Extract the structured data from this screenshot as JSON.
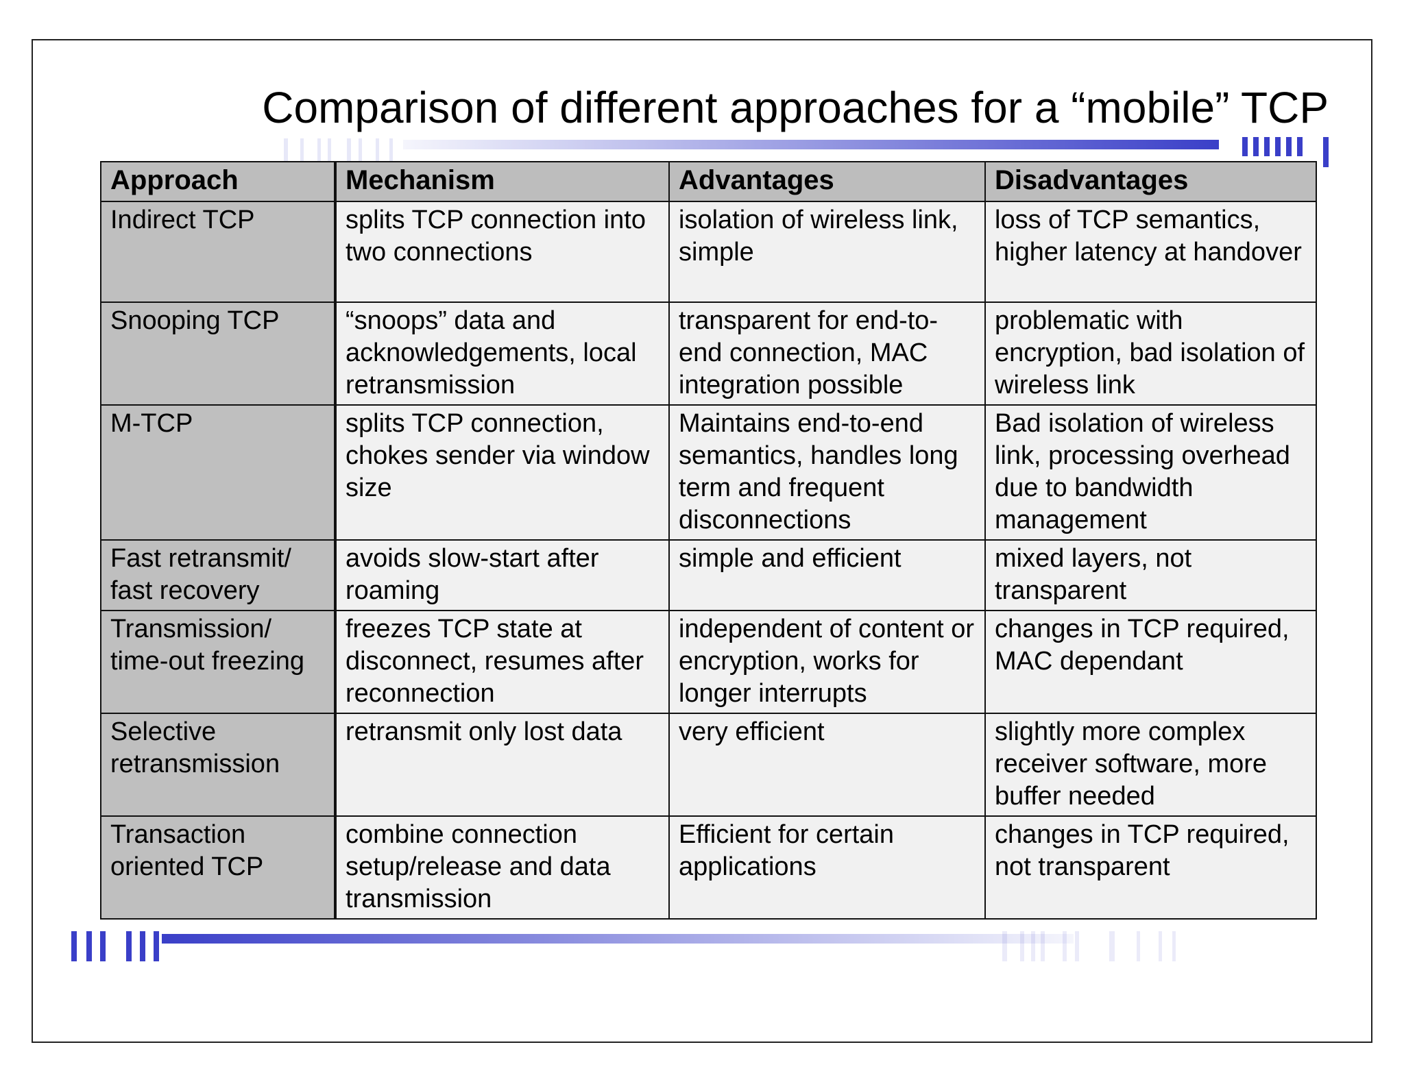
{
  "slide": {
    "title": "Comparison of different approaches for a “mobile” TCP"
  },
  "table": {
    "headers": [
      "Approach",
      "Mechanism",
      "Advantages",
      "Disadvantages"
    ],
    "rows": [
      {
        "approach": "Indirect TCP",
        "mechanism": "splits TCP connection into two connections",
        "advantages": "isolation of wireless link, simple",
        "disadvantages": "loss of TCP semantics, higher latency at handover"
      },
      {
        "approach": "Snooping TCP",
        "mechanism": "“snoops” data and acknowledgements, local retransmission",
        "advantages": "transparent for end-to-end connection, MAC integration possible",
        "disadvantages": "problematic with encryption, bad isolation of wireless link"
      },
      {
        "approach": "M-TCP",
        "mechanism": "splits TCP connection, chokes sender via window size",
        "advantages": "Maintains end-to-end semantics, handles long term and frequent disconnections",
        "disadvantages": "Bad isolation of wireless link, processing overhead due to bandwidth management"
      },
      {
        "approach": "Fast retransmit/ fast recovery",
        "mechanism": "avoids slow-start after roaming",
        "advantages": "simple and efficient",
        "disadvantages": "mixed layers, not transparent"
      },
      {
        "approach": "Transmission/ time-out freezing",
        "mechanism": "freezes TCP state at disconnect, resumes after reconnection",
        "advantages": "independent of content or encryption, works for longer interrupts",
        "disadvantages": "changes in TCP required, MAC dependant"
      },
      {
        "approach": "Selective retransmission",
        "mechanism": "retransmit only lost data",
        "advantages": "very efficient",
        "disadvantages": "slightly more complex receiver software, more buffer needed"
      },
      {
        "approach": "Transaction oriented TCP",
        "mechanism": "combine connection setup/release and data transmission",
        "advantages": "Efficient for certain applications",
        "disadvantages": "changes in TCP required, not transparent"
      }
    ]
  },
  "colors": {
    "accent_blue": "#3a3fc8",
    "header_gray": "#bdbdbd",
    "approach_gray": "#bfbfbf",
    "cell_light": "#f1f1f1"
  }
}
